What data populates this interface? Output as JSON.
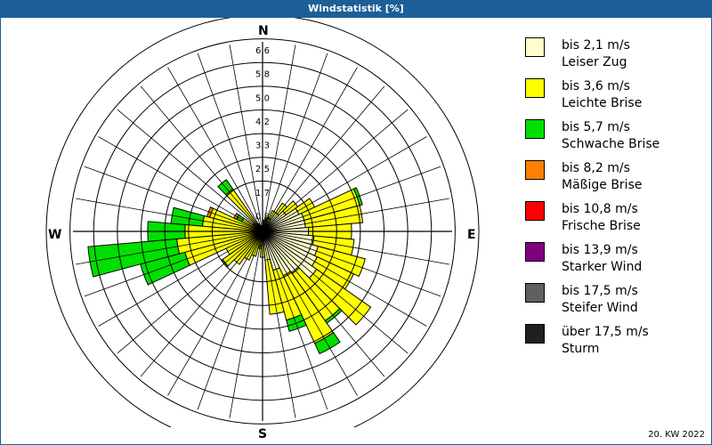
{
  "title": "Windstatistik [%]",
  "footer": "20. KW 2022",
  "directions": {
    "n": "N",
    "e": "E",
    "s": "S",
    "w": "W"
  },
  "legend": [
    {
      "range": "bis 2,1 m/s",
      "name": "Leiser Zug",
      "color": "#ffffcc"
    },
    {
      "range": "bis 3,6 m/s",
      "name": "Leichte Brise",
      "color": "#ffff00"
    },
    {
      "range": "bis 5,7 m/s",
      "name": "Schwache Brise",
      "color": "#00e000"
    },
    {
      "range": "bis 8,2 m/s",
      "name": "Mäßige Brise",
      "color": "#ff8000"
    },
    {
      "range": "bis 10,8 m/s",
      "name": "Frische Brise",
      "color": "#ff0000"
    },
    {
      "range": "bis 13,9 m/s",
      "name": "Starker Wind",
      "color": "#800080"
    },
    {
      "range": "bis 17,5 m/s",
      "name": "Steifer Wind",
      "color": "#606060"
    },
    {
      "range": "über 17,5 m/s",
      "name": "Sturm",
      "color": "#202020"
    }
  ],
  "chart_data": {
    "type": "polar-stacked-bar (wind rose)",
    "title": "Windstatistik [%]",
    "radial_ticks": [
      "0,8",
      "1,7",
      "2,5",
      "3,3",
      "4,2",
      "5,0",
      "5,8",
      "6,6"
    ],
    "radial_max": 6.6,
    "sector_width_deg": 10,
    "series_names": [
      "bis 2,1 m/s",
      "bis 3,6 m/s",
      "bis 5,7 m/s",
      "bis 8,2 m/s"
    ],
    "sectors": [
      {
        "dir": 10,
        "values": [
          0.2,
          0.2,
          0,
          0
        ]
      },
      {
        "dir": 20,
        "values": [
          0.4,
          0.1,
          0,
          0
        ]
      },
      {
        "dir": 30,
        "values": [
          0.5,
          0.3,
          0,
          0
        ]
      },
      {
        "dir": 40,
        "values": [
          0.8,
          0.4,
          0,
          0
        ]
      },
      {
        "dir": 50,
        "values": [
          1.0,
          0.5,
          0,
          0
        ]
      },
      {
        "dir": 60,
        "values": [
          1.4,
          0.6,
          0,
          0
        ]
      },
      {
        "dir": 70,
        "values": [
          1.5,
          2.0,
          0.1,
          0
        ]
      },
      {
        "dir": 80,
        "values": [
          1.5,
          2.0,
          0,
          0
        ]
      },
      {
        "dir": 90,
        "values": [
          1.6,
          1.5,
          0,
          0
        ]
      },
      {
        "dir": 100,
        "values": [
          1.8,
          1.4,
          0,
          0
        ]
      },
      {
        "dir": 110,
        "values": [
          2.0,
          1.7,
          0,
          0
        ]
      },
      {
        "dir": 120,
        "values": [
          2.1,
          1.4,
          0,
          0
        ]
      },
      {
        "dir": 130,
        "values": [
          2.3,
          2.3,
          0,
          0
        ]
      },
      {
        "dir": 140,
        "values": [
          1.8,
          2.0,
          0.1,
          0
        ]
      },
      {
        "dir": 150,
        "values": [
          1.7,
          2.6,
          0.4,
          0
        ]
      },
      {
        "dir": 160,
        "values": [
          1.4,
          1.8,
          0.4,
          0
        ]
      },
      {
        "dir": 170,
        "values": [
          1.0,
          1.9,
          0,
          0
        ]
      },
      {
        "dir": 180,
        "values": [
          0.3,
          0.6,
          0,
          0
        ]
      },
      {
        "dir": 190,
        "values": [
          0.2,
          0.3,
          0.1,
          0
        ]
      },
      {
        "dir": 200,
        "values": [
          0.3,
          0.6,
          0,
          0
        ]
      },
      {
        "dir": 210,
        "values": [
          0.3,
          0.8,
          0,
          0
        ]
      },
      {
        "dir": 220,
        "values": [
          0.3,
          1.1,
          0,
          0
        ]
      },
      {
        "dir": 230,
        "values": [
          0.3,
          1.4,
          0.05,
          0
        ]
      },
      {
        "dir": 240,
        "values": [
          0.2,
          1.2,
          0,
          0
        ]
      },
      {
        "dir": 250,
        "values": [
          0.2,
          2.6,
          1.6,
          0
        ]
      },
      {
        "dir": 260,
        "values": [
          0.2,
          2.8,
          3.1,
          0
        ]
      },
      {
        "dir": 270,
        "values": [
          0.2,
          2.5,
          1.3,
          0
        ]
      },
      {
        "dir": 280,
        "values": [
          0.2,
          1.9,
          1.1,
          0
        ]
      },
      {
        "dir": 290,
        "values": [
          0.2,
          1.7,
          0,
          0.1
        ]
      },
      {
        "dir": 300,
        "values": [
          0.2,
          0.6,
          0.2,
          0.1
        ]
      },
      {
        "dir": 310,
        "values": [
          0.2,
          0.2,
          0,
          0
        ]
      },
      {
        "dir": 320,
        "values": [
          0.2,
          1.6,
          0.4,
          0
        ]
      },
      {
        "dir": 330,
        "values": [
          0.1,
          0.2,
          0,
          0
        ]
      },
      {
        "dir": 340,
        "values": [
          0.1,
          0.1,
          0,
          0
        ]
      },
      {
        "dir": 350,
        "values": [
          0.1,
          0.1,
          0,
          0
        ]
      },
      {
        "dir": 360,
        "values": [
          0.1,
          0.1,
          0,
          0
        ]
      }
    ],
    "legend_position": "right",
    "grid": true
  }
}
